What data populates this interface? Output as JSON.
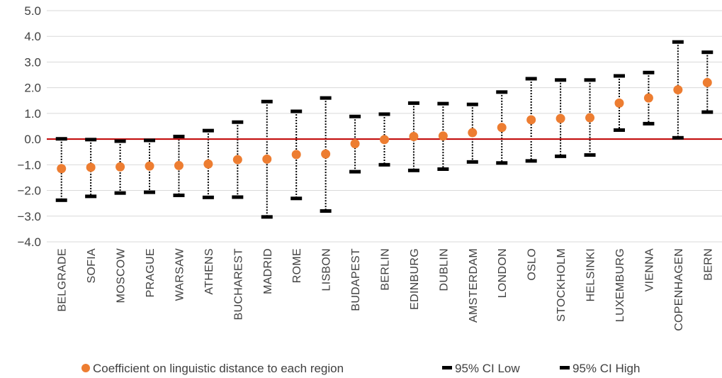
{
  "chart_data": {
    "type": "scatter",
    "x_tick_labels": [
      "BELGRADE",
      "SOFIA",
      "MOSCOW",
      "PRAGUE",
      "WARSAW",
      "ATHENS",
      "BUCHAREST",
      "MADRID",
      "ROME",
      "LISBON",
      "BUDAPEST",
      "BERLIN",
      "EDINBURG",
      "DUBLIN",
      "AMSTERDAM",
      "LONDON",
      "OSLO",
      "STOCKHOLM",
      "HELSINKI",
      "LUXEMBURG",
      "VIENNA",
      "COPENHAGEN",
      "BERN"
    ],
    "y_tick_labels": [
      "5.0",
      "4.0",
      "3.0",
      "2.0",
      "1.0",
      "0.0",
      "−1.0",
      "−2.0",
      "−3.0",
      "−4.0"
    ],
    "ylim": [
      -4,
      5
    ],
    "y_tick_step": 1,
    "series": [
      {
        "name": "Coefficient on linguistic distance to each region",
        "marker": "circle",
        "color": "#ED7D31",
        "values": [
          -1.15,
          -1.1,
          -1.08,
          -1.05,
          -1.03,
          -0.97,
          -0.8,
          -0.78,
          -0.6,
          -0.58,
          -0.18,
          -0.02,
          0.1,
          0.12,
          0.25,
          0.45,
          0.75,
          0.8,
          0.83,
          1.4,
          1.6,
          1.92,
          2.2
        ]
      },
      {
        "name": "95% CI Low",
        "marker": "dash",
        "color": "#000000",
        "values": [
          -2.38,
          -2.23,
          -2.1,
          -2.07,
          -2.19,
          -2.27,
          -2.26,
          -3.03,
          -2.31,
          -2.8,
          -1.27,
          -1.0,
          -1.22,
          -1.17,
          -0.89,
          -0.93,
          -0.85,
          -0.67,
          -0.62,
          0.35,
          0.6,
          0.05,
          1.05
        ]
      },
      {
        "name": "95% CI High",
        "marker": "dash",
        "color": "#000000",
        "values": [
          0.01,
          -0.02,
          -0.08,
          -0.05,
          0.1,
          0.33,
          0.66,
          1.46,
          1.08,
          1.6,
          0.88,
          0.97,
          1.4,
          1.38,
          1.35,
          1.83,
          2.35,
          2.3,
          2.3,
          2.46,
          2.59,
          3.78,
          3.38
        ]
      }
    ],
    "reference_line": {
      "y": 0,
      "color": "#C00000"
    },
    "grid": true,
    "legend_position": "bottom",
    "xlabel": "",
    "ylabel": ""
  }
}
